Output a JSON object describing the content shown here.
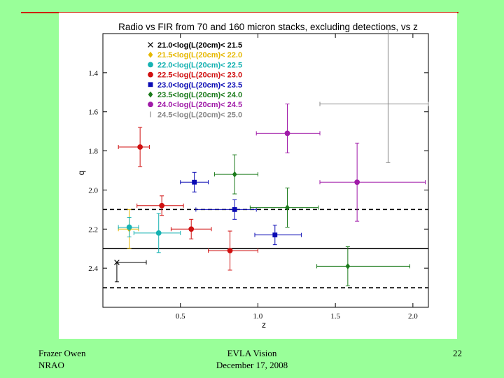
{
  "footer": {
    "author": "Frazer Owen",
    "org": "NRAO",
    "event": "EVLA Vision",
    "date": "December 17, 2008",
    "page_number": "22"
  },
  "chart_data": {
    "type": "scatter",
    "title": "Radio vs FIR from 70 and 160 micron stacks, excluding detections, vs z",
    "xlabel": "z",
    "ylabel": "q",
    "xlim": [
      0.0,
      2.1
    ],
    "ylim": [
      2.6,
      1.2
    ],
    "y_inverted": true,
    "xticks": [
      0.5,
      1.0,
      1.5,
      2.0
    ],
    "xtick_labels": [
      "0.5",
      "1.0",
      "1.5",
      "2.0"
    ],
    "yticks": [
      1.4,
      1.6,
      1.8,
      2.0,
      2.2,
      2.4
    ],
    "ytick_labels": [
      "1.4",
      "1.6",
      "1.8",
      "2.0",
      "2.2",
      "2.4"
    ],
    "legend_position": "top-left",
    "hlines": [
      {
        "y": 2.1,
        "style": "dashed"
      },
      {
        "y": 2.3,
        "style": "solid"
      },
      {
        "y": 2.5,
        "style": "dashed"
      }
    ],
    "series": [
      {
        "name": "21.0<log(L(20cm)< 21.5",
        "color": "#000000",
        "marker": "x",
        "points": [
          {
            "x": 0.09,
            "y": 2.37,
            "xerr": [
              0.0,
              0.19
            ],
            "yerr": [
              0.0,
              0.1
            ]
          }
        ]
      },
      {
        "name": "21.5<log(L(20cm)< 22.0",
        "color": "#e6b800",
        "marker": "diamond",
        "points": [
          {
            "x": 0.17,
            "y": 2.2,
            "xerr": [
              0.07,
              0.06
            ],
            "yerr": [
              0.1,
              0.1
            ]
          }
        ]
      },
      {
        "name": "22.0<log(L(20cm)< 22.5",
        "color": "#16b2b2",
        "marker": "circle",
        "points": [
          {
            "x": 0.17,
            "y": 2.19,
            "xerr": [
              0.07,
              0.06
            ],
            "yerr": [
              0.05,
              0.05
            ]
          },
          {
            "x": 0.36,
            "y": 2.22,
            "xerr": [
              0.16,
              0.14
            ],
            "yerr": [
              0.1,
              0.1
            ]
          }
        ]
      },
      {
        "name": "22.5<log(L(20cm)< 23.0",
        "color": "#d01010",
        "marker": "circle",
        "points": [
          {
            "x": 0.24,
            "y": 1.78,
            "xerr": [
              0.14,
              0.06
            ],
            "yerr": [
              0.1,
              0.1
            ]
          },
          {
            "x": 0.38,
            "y": 2.08,
            "xerr": [
              0.16,
              0.14
            ],
            "yerr": [
              0.05,
              0.05
            ]
          },
          {
            "x": 0.57,
            "y": 2.2,
            "xerr": [
              0.13,
              0.13
            ],
            "yerr": [
              0.05,
              0.05
            ]
          },
          {
            "x": 0.82,
            "y": 2.31,
            "xerr": [
              0.14,
              0.18
            ],
            "yerr": [
              0.1,
              0.1
            ]
          }
        ]
      },
      {
        "name": "23.0<log(L(20cm)< 23.5",
        "color": "#0a0ab4",
        "marker": "square",
        "points": [
          {
            "x": 0.59,
            "y": 1.96,
            "xerr": [
              0.09,
              0.09
            ],
            "yerr": [
              0.05,
              0.05
            ]
          },
          {
            "x": 0.85,
            "y": 2.1,
            "xerr": [
              0.25,
              0.14
            ],
            "yerr": [
              0.05,
              0.05
            ]
          },
          {
            "x": 1.11,
            "y": 2.23,
            "xerr": [
              0.13,
              0.17
            ],
            "yerr": [
              0.05,
              0.05
            ]
          }
        ]
      },
      {
        "name": "23.5<log(L(20cm)< 24.0",
        "color": "#1a7a1a",
        "marker": "diamond",
        "points": [
          {
            "x": 0.85,
            "y": 1.92,
            "xerr": [
              0.13,
              0.15
            ],
            "yerr": [
              0.1,
              0.1
            ]
          },
          {
            "x": 1.19,
            "y": 2.09,
            "xerr": [
              0.24,
              0.2
            ],
            "yerr": [
              0.1,
              0.1
            ]
          },
          {
            "x": 1.58,
            "y": 2.39,
            "xerr": [
              0.2,
              0.4
            ],
            "yerr": [
              0.1,
              0.1
            ]
          }
        ]
      },
      {
        "name": "24.0<log(L(20cm)< 24.5",
        "color": "#a01aa8",
        "marker": "circle",
        "points": [
          {
            "x": 1.19,
            "y": 1.71,
            "xerr": [
              0.2,
              0.21
            ],
            "yerr": [
              0.15,
              0.1
            ]
          },
          {
            "x": 1.64,
            "y": 1.96,
            "xerr": [
              0.24,
              0.44
            ],
            "yerr": [
              0.2,
              0.2
            ]
          }
        ]
      },
      {
        "name": "24.5<log(L(20cm)< 25.0",
        "color": "#888888",
        "marker": "bar",
        "points": [
          {
            "x": 1.84,
            "y": 1.56,
            "xerr": [
              0.44,
              0.26
            ],
            "yerr": [
              0.38,
              0.3
            ]
          }
        ]
      }
    ]
  }
}
